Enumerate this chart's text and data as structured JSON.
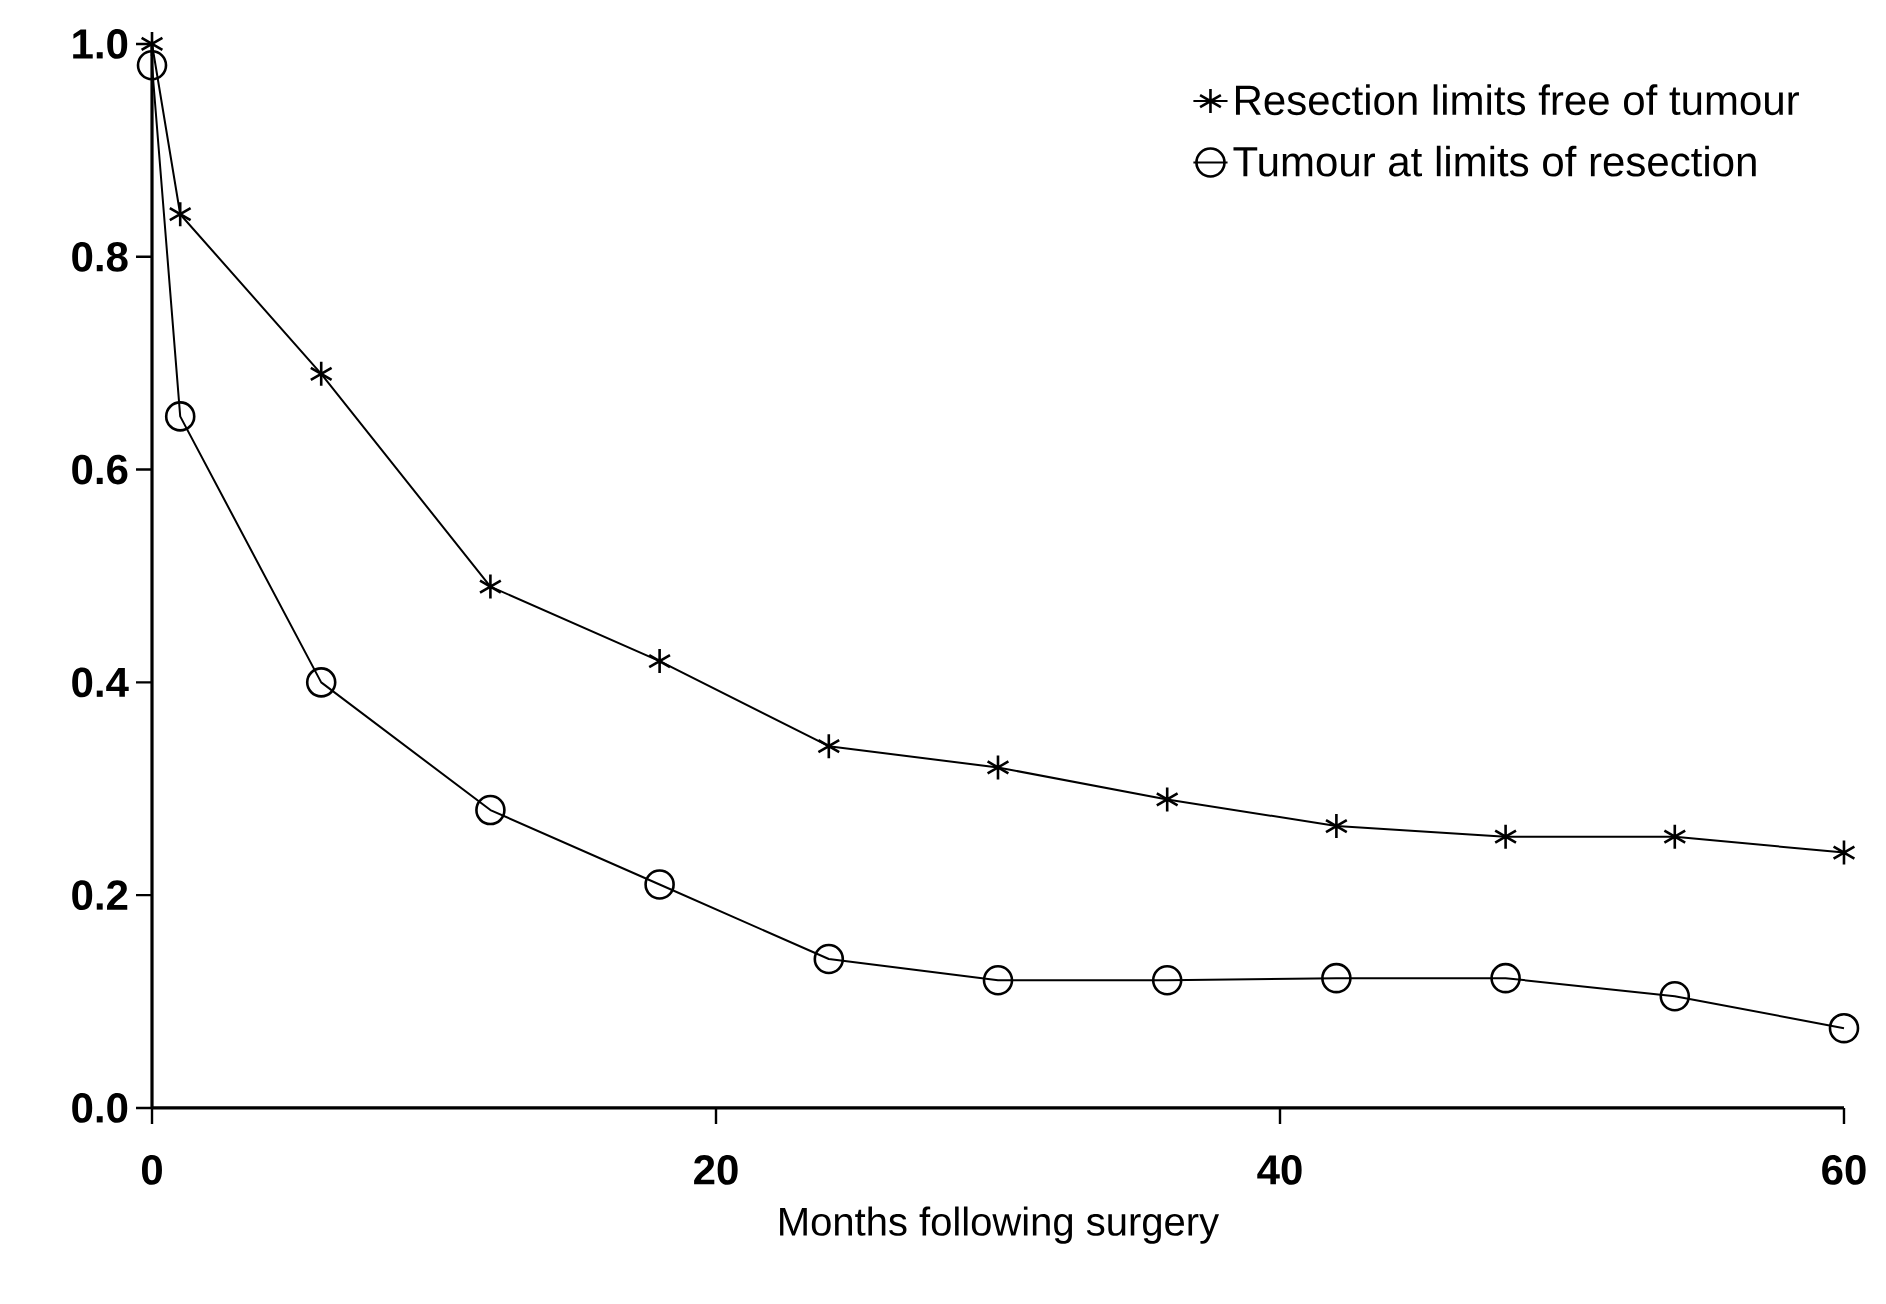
{
  "chart_data": {
    "type": "line",
    "xlabel": "Months following surgery",
    "xlim": [
      0,
      60
    ],
    "xticks": [
      0,
      20,
      40,
      60
    ],
    "ylim": [
      0,
      1
    ],
    "yticks": [
      {
        "value": 0,
        "label": "0.0"
      },
      0.2,
      0.4,
      0.6,
      0.8,
      {
        "value": 1,
        "label": "1.0"
      }
    ],
    "grid": false,
    "legend": "top right",
    "line_style": "solid",
    "x": [
      0,
      1,
      6,
      12,
      18,
      24,
      30,
      36,
      42,
      48,
      54,
      60
    ],
    "series": [
      {
        "name": "Resection limits free of tumour",
        "color": "#000000",
        "marker": "cross",
        "values": [
          1.0,
          0.84,
          0.69,
          0.49,
          0.42,
          0.34,
          0.32,
          0.29,
          0.265,
          0.255,
          0.255,
          0.24
        ]
      },
      {
        "name": "Tumour at limits of resection",
        "color": "#000000",
        "marker": "circle",
        "values": [
          0.98,
          0.65,
          0.4,
          0.28,
          0.21,
          0.14,
          0.12,
          0.12,
          0.122,
          0.122,
          0.105,
          0.075
        ]
      }
    ]
  }
}
